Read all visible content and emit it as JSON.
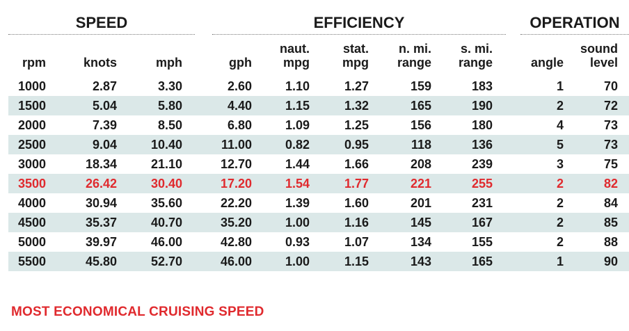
{
  "groups": {
    "speed": "SPEED",
    "efficiency": "EFFICIENCY",
    "operation": "OPERATION"
  },
  "columns": [
    {
      "line1": "",
      "line2": "rpm"
    },
    {
      "line1": "",
      "line2": "knots"
    },
    {
      "line1": "",
      "line2": "mph"
    },
    {
      "line1": "",
      "line2": "gph"
    },
    {
      "line1": "naut.",
      "line2": "mpg"
    },
    {
      "line1": "stat.",
      "line2": "mpg"
    },
    {
      "line1": "n. mi.",
      "line2": "range"
    },
    {
      "line1": "s. mi.",
      "line2": "range"
    },
    {
      "line1": "",
      "line2": "angle"
    },
    {
      "line1": "sound",
      "line2": "level"
    }
  ],
  "rows": [
    [
      "1000",
      "2.87",
      "3.30",
      "2.60",
      "1.10",
      "1.27",
      "159",
      "183",
      "1",
      "70"
    ],
    [
      "1500",
      "5.04",
      "5.80",
      "4.40",
      "1.15",
      "1.32",
      "165",
      "190",
      "2",
      "72"
    ],
    [
      "2000",
      "7.39",
      "8.50",
      "6.80",
      "1.09",
      "1.25",
      "156",
      "180",
      "4",
      "73"
    ],
    [
      "2500",
      "9.04",
      "10.40",
      "11.00",
      "0.82",
      "0.95",
      "118",
      "136",
      "5",
      "73"
    ],
    [
      "3000",
      "18.34",
      "21.10",
      "12.70",
      "1.44",
      "1.66",
      "208",
      "239",
      "3",
      "75"
    ],
    [
      "3500",
      "26.42",
      "30.40",
      "17.20",
      "1.54",
      "1.77",
      "221",
      "255",
      "2",
      "82"
    ],
    [
      "4000",
      "30.94",
      "35.60",
      "22.20",
      "1.39",
      "1.60",
      "201",
      "231",
      "2",
      "84"
    ],
    [
      "4500",
      "35.37",
      "40.70",
      "35.20",
      "1.00",
      "1.16",
      "145",
      "167",
      "2",
      "85"
    ],
    [
      "5000",
      "39.97",
      "46.00",
      "42.80",
      "0.93",
      "1.07",
      "134",
      "155",
      "2",
      "88"
    ],
    [
      "5500",
      "45.80",
      "52.70",
      "46.00",
      "1.00",
      "1.15",
      "143",
      "165",
      "1",
      "90"
    ]
  ],
  "highlight_row": 5,
  "footnote": "MOST ECONOMICAL CRUISING SPEED",
  "colors": {
    "highlight": "#e02a2e",
    "shade": "#dbe8e8",
    "text": "#1a1a1a"
  }
}
